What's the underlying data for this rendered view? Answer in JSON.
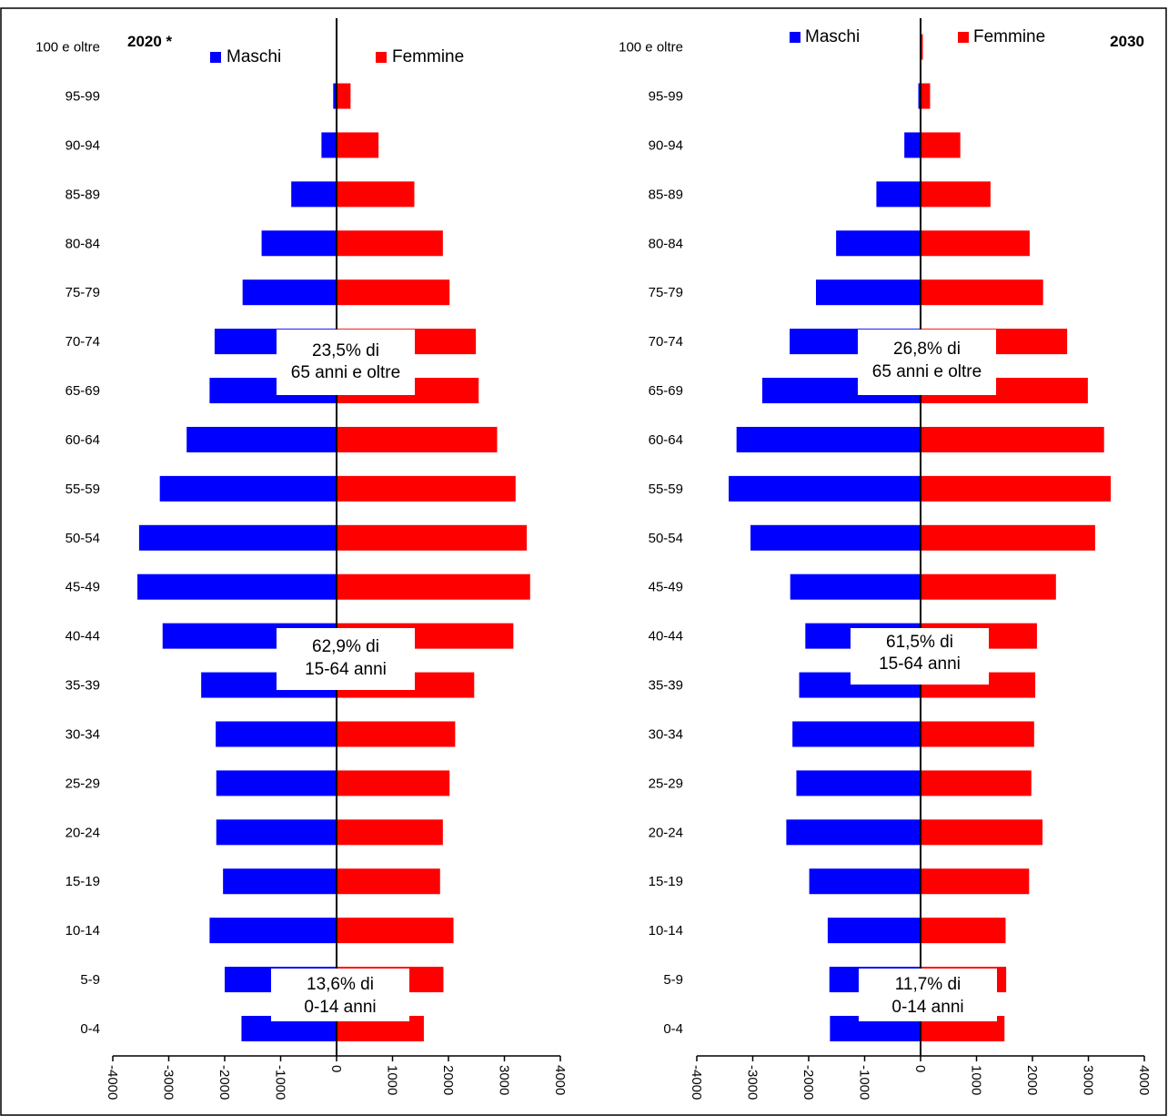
{
  "chart_data": [
    {
      "type": "bar",
      "title": "2020 *",
      "categories": [
        "0-4",
        "5-9",
        "10-14",
        "15-19",
        "20-24",
        "25-29",
        "30-34",
        "35-39",
        "40-44",
        "45-49",
        "50-54",
        "55-59",
        "60-64",
        "65-69",
        "70-74",
        "75-79",
        "80-84",
        "85-89",
        "90-94",
        "95-99",
        "100 e oltre"
      ],
      "series": [
        {
          "name": "Maschi",
          "values": [
            -1700,
            -2000,
            -2270,
            -2030,
            -2150,
            -2150,
            -2160,
            -2420,
            -3110,
            -3560,
            -3530,
            -3160,
            -2680,
            -2270,
            -2180,
            -1680,
            -1340,
            -810,
            -270,
            -60,
            -5
          ]
        },
        {
          "name": "Femmine",
          "values": [
            1560,
            1910,
            2090,
            1850,
            1900,
            2020,
            2120,
            2460,
            3160,
            3460,
            3400,
            3200,
            2870,
            2540,
            2490,
            2020,
            1900,
            1390,
            750,
            250,
            15
          ]
        }
      ],
      "xlim": [
        -4000,
        4000
      ],
      "ticks": [
        "-4000",
        "-3000",
        "-2000",
        "-1000",
        "0",
        "1000",
        "2000",
        "3000",
        "4000"
      ],
      "annotations": [
        {
          "line1": "23,5% di",
          "line2": "65 anni e oltre"
        },
        {
          "line1": "62,9% di",
          "line2": "15-64 anni"
        },
        {
          "line1": "13,6% di",
          "line2": "0-14 anni"
        }
      ]
    },
    {
      "type": "bar",
      "title": "2030",
      "categories": [
        "0-4",
        "5-9",
        "10-14",
        "15-19",
        "20-24",
        "25-29",
        "30-34",
        "35-39",
        "40-44",
        "45-49",
        "50-54",
        "55-59",
        "60-64",
        "65-69",
        "70-74",
        "75-79",
        "80-84",
        "85-89",
        "90-94",
        "95-99",
        "100 e oltre"
      ],
      "series": [
        {
          "name": "Maschi",
          "values": [
            -1620,
            -1630,
            -1660,
            -1990,
            -2400,
            -2220,
            -2290,
            -2170,
            -2060,
            -2330,
            -3040,
            -3430,
            -3290,
            -2830,
            -2340,
            -1870,
            -1510,
            -790,
            -290,
            -40,
            -5
          ]
        },
        {
          "name": "Femmine",
          "values": [
            1500,
            1530,
            1520,
            1940,
            2180,
            1980,
            2030,
            2050,
            2080,
            2420,
            3120,
            3400,
            3280,
            2990,
            2620,
            2190,
            1950,
            1250,
            710,
            170,
            40
          ]
        }
      ],
      "xlim": [
        -4000,
        4000
      ],
      "ticks": [
        "-4000",
        "-3000",
        "-2000",
        "-1000",
        "0",
        "1000",
        "2000",
        "3000",
        "4000"
      ],
      "annotations": [
        {
          "line1": "26,8% di",
          "line2": "65 anni e oltre"
        },
        {
          "line1": "61,5% di",
          "line2": "15-64 anni"
        },
        {
          "line1": "11,7% di",
          "line2": "0-14 anni"
        }
      ]
    }
  ],
  "colors": {
    "male": "#0000FF",
    "female": "#FF0000",
    "axis": "#000000"
  }
}
